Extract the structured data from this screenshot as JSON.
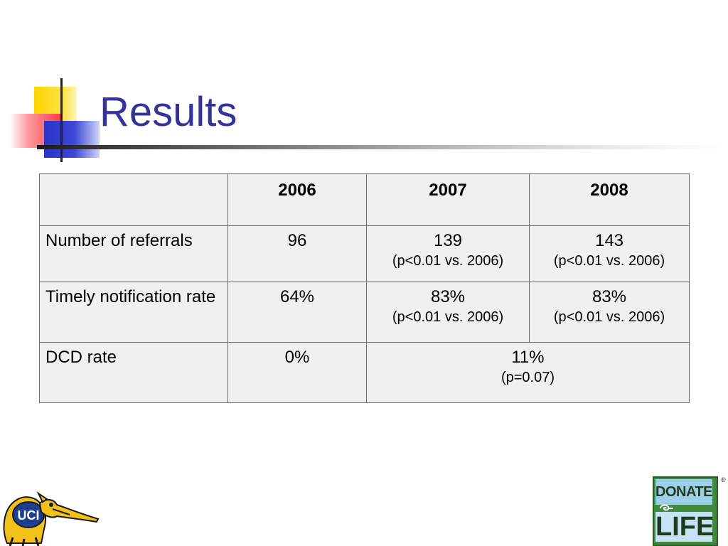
{
  "slide": {
    "title": "Results"
  },
  "table": {
    "header": [
      "",
      "2006",
      "2007",
      "2008"
    ],
    "rows": [
      {
        "label": "Number of referrals",
        "c2006": "96",
        "c2007": "139",
        "c2007_sub": "(p<0.01 vs. 2006)",
        "c2008": "143",
        "c2008_sub": "(p<0.01 vs. 2006)"
      },
      {
        "label": "Timely notification rate",
        "c2006": "64%",
        "c2007": "83%",
        "c2007_sub": "(p<0.01 vs. 2006)",
        "c2008": "83%",
        "c2008_sub": "(p<0.01 vs. 2006)"
      },
      {
        "label": "DCD rate",
        "c2006": "0%",
        "c2007_2008": "11%",
        "c2007_2008_sub": "(p=0.07)"
      }
    ]
  },
  "logos": {
    "uci_text": "UCI",
    "donate_life_top": "DONATE",
    "donate_life_bottom": "LIFE",
    "donate_life_reg": "®"
  },
  "colors": {
    "title": "#33339a",
    "table_cell_bg": "#f0f0f0",
    "table_border": "#6a6a6a",
    "deco_yellow": "#ffd400",
    "deco_red": "#ff3b46",
    "deco_blue": "#2a35c8",
    "uci_yellow": "#f2c21b",
    "uci_blue": "#1d3f8f",
    "donate_life_green": "#3f8a3c",
    "donate_life_blue": "#9ecfe8"
  }
}
